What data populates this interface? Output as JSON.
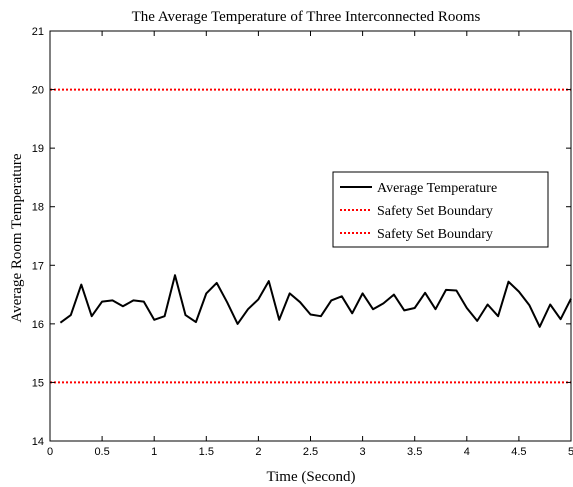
{
  "chart_data": {
    "type": "line",
    "title": "The Average Temperature of Three Interconnected Rooms",
    "xlabel": "Time (Second)",
    "ylabel": "Average Room Temperature",
    "xlim": [
      0,
      5
    ],
    "ylim": [
      14,
      21
    ],
    "xticks": [
      0,
      0.5,
      1,
      1.5,
      2,
      2.5,
      3,
      3.5,
      4,
      4.5,
      5
    ],
    "xtick_labels": [
      "0",
      "0.5",
      "1",
      "1.5",
      "2",
      "2.5",
      "3",
      "3.5",
      "4",
      "4.5",
      "5"
    ],
    "yticks": [
      14,
      15,
      16,
      17,
      18,
      19,
      20,
      21
    ],
    "ytick_labels": [
      "14",
      "15",
      "16",
      "17",
      "18",
      "19",
      "20",
      "21"
    ],
    "grid": false,
    "legend_position": "right",
    "series": [
      {
        "name": "Average Temperature",
        "color": "#000000",
        "style": "solid",
        "x": [
          0.1,
          0.2,
          0.3,
          0.4,
          0.5,
          0.6,
          0.7,
          0.8,
          0.9,
          1.0,
          1.1,
          1.2,
          1.3,
          1.4,
          1.5,
          1.6,
          1.7,
          1.8,
          1.9,
          2.0,
          2.1,
          2.2,
          2.3,
          2.4,
          2.5,
          2.6,
          2.7,
          2.8,
          2.9,
          3.0,
          3.1,
          3.2,
          3.3,
          3.4,
          3.5,
          3.6,
          3.7,
          3.8,
          3.9,
          4.0,
          4.1,
          4.2,
          4.3,
          4.4,
          4.5,
          4.6,
          4.7,
          4.8,
          4.9,
          5.0
        ],
        "values": [
          16.02,
          16.15,
          16.67,
          16.13,
          16.38,
          16.4,
          16.3,
          16.4,
          16.38,
          16.07,
          16.13,
          16.83,
          16.15,
          16.03,
          16.52,
          16.7,
          16.37,
          16.0,
          16.25,
          16.42,
          16.73,
          16.07,
          16.52,
          16.37,
          16.16,
          16.13,
          16.4,
          16.47,
          16.18,
          16.52,
          16.25,
          16.35,
          16.5,
          16.23,
          16.27,
          16.53,
          16.25,
          16.58,
          16.57,
          16.27,
          16.05,
          16.33,
          16.13,
          16.72,
          16.55,
          16.32,
          15.95,
          16.33,
          16.08,
          16.43
        ]
      },
      {
        "name": "Safety Set Boundary",
        "color": "#ff0000",
        "style": "dotted",
        "x": [
          0,
          5
        ],
        "values": [
          20,
          20
        ]
      },
      {
        "name": "Safety Set Boundary",
        "color": "#ff0000",
        "style": "dotted",
        "x": [
          0,
          5
        ],
        "values": [
          15,
          15
        ]
      }
    ]
  }
}
